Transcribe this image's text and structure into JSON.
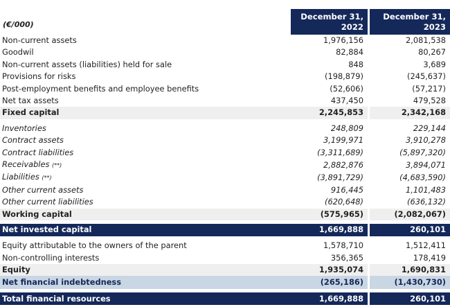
{
  "header": {
    "unit_label": "(€/000)",
    "col1_line1": "December 31,",
    "col1_line2": "2022",
    "col2_line1": "December 31,",
    "col2_line2": "2023"
  },
  "rows": [
    {
      "label": "Non-current assets",
      "v2022": "1,976,156",
      "v2023": "2,081,538"
    },
    {
      "label": "Goodwil",
      "v2022": "82,884",
      "v2023": "80,267"
    },
    {
      "label": "Non-current assets (liabilities) held for sale",
      "v2022": "848",
      "v2023": "3,689"
    },
    {
      "label": "Provisions for risks",
      "v2022": "(198,879)",
      "v2023": "(245,637)"
    },
    {
      "label": "Post-employment benefits and employee benefits",
      "v2022": "(52,606)",
      "v2023": "(57,217)"
    },
    {
      "label": "Net tax assets",
      "v2022": "437,450",
      "v2023": "479,528"
    },
    {
      "label": "Fixed capital",
      "v2022": "2,245,853",
      "v2023": "2,342,168"
    },
    {
      "label": "Inventories",
      "v2022": "248,809",
      "v2023": "229,144"
    },
    {
      "label": "Contract assets",
      "v2022": "3,199,971",
      "v2023": "3,910,278"
    },
    {
      "label": "Contract liabilities",
      "v2022": "(3,311,689)",
      "v2023": "(5,897,320)"
    },
    {
      "label": "Receivables",
      "note": "(**)",
      "v2022": "2,882,876",
      "v2023": "3,894,071"
    },
    {
      "label": "Liabilities",
      "note": "(**)",
      "v2022": "(3,891,729)",
      "v2023": "(4,683,590)"
    },
    {
      "label": "Other current assets",
      "v2022": "916,445",
      "v2023": "1,101,483"
    },
    {
      "label": "Other current liabilities",
      "v2022": "(620,648)",
      "v2023": "(636,132)"
    },
    {
      "label": "Working capital",
      "v2022": "(575,965)",
      "v2023": "(2,082,067)"
    },
    {
      "label": "Net invested capital",
      "v2022": "1,669,888",
      "v2023": "260,101"
    },
    {
      "label": "Equity attributable to the owners of the parent",
      "v2022": "1,578,710",
      "v2023": "1,512,411"
    },
    {
      "label": "Non-controlling interests",
      "v2022": "356,365",
      "v2023": "178,419"
    },
    {
      "label": "Equity",
      "v2022": "1,935,074",
      "v2023": "1,690,831"
    },
    {
      "label": "Net financial indebtedness",
      "v2022": "(265,186)",
      "v2023": "(1,430,730)"
    },
    {
      "label": "Total financial resources",
      "v2022": "1,669,888",
      "v2023": "260,101"
    }
  ],
  "colors": {
    "dark_band": "#14285a",
    "light_band": "#c9d6e3",
    "subtotal_band": "#efefef"
  }
}
